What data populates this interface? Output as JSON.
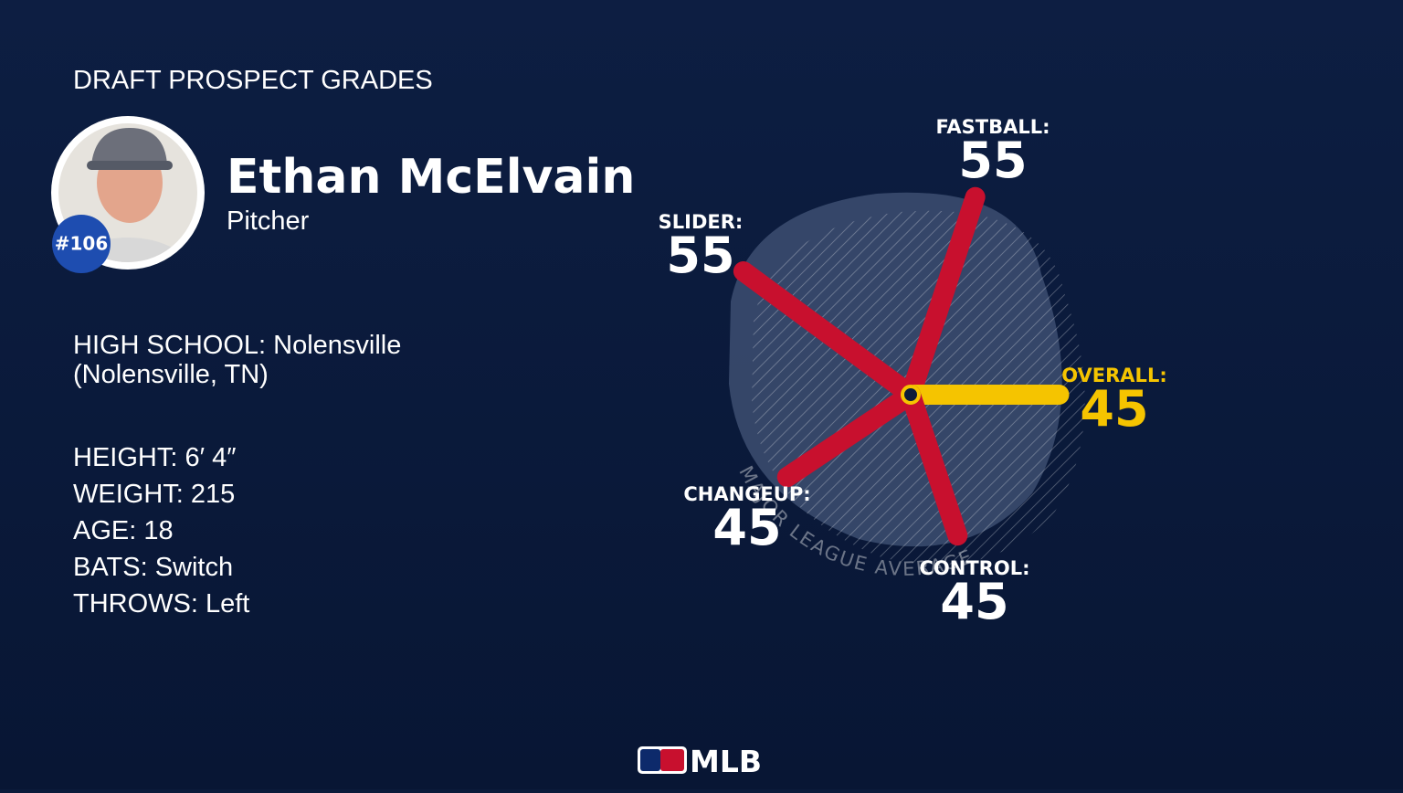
{
  "header": {
    "title": "DRAFT PROSPECT GRADES"
  },
  "player": {
    "name": "Ethan McElvain",
    "position": "Pitcher",
    "rank": "#106"
  },
  "details": {
    "school": [
      "HIGH SCHOOL: Nolensville",
      "(Nolensville, TN)"
    ],
    "stats": [
      "HEIGHT: 6′ 4″",
      "WEIGHT: 215",
      "AGE: 18",
      "BATS: Switch",
      "THROWS: Left"
    ]
  },
  "grades": {
    "average_label": "MAJOR LEAGUE AVERAGE",
    "items": [
      {
        "label": "FASTBALL:",
        "value": 55,
        "color": "#c8102e"
      },
      {
        "label": "SLIDER:",
        "value": 55,
        "color": "#c8102e"
      },
      {
        "label": "OVERALL:",
        "value": 45,
        "color": "#f5c400"
      },
      {
        "label": "CHANGEUP:",
        "value": 45,
        "color": "#c8102e"
      },
      {
        "label": "CONTROL:",
        "value": 45,
        "color": "#c8102e"
      }
    ]
  },
  "footer": {
    "logo": "MLB"
  }
}
